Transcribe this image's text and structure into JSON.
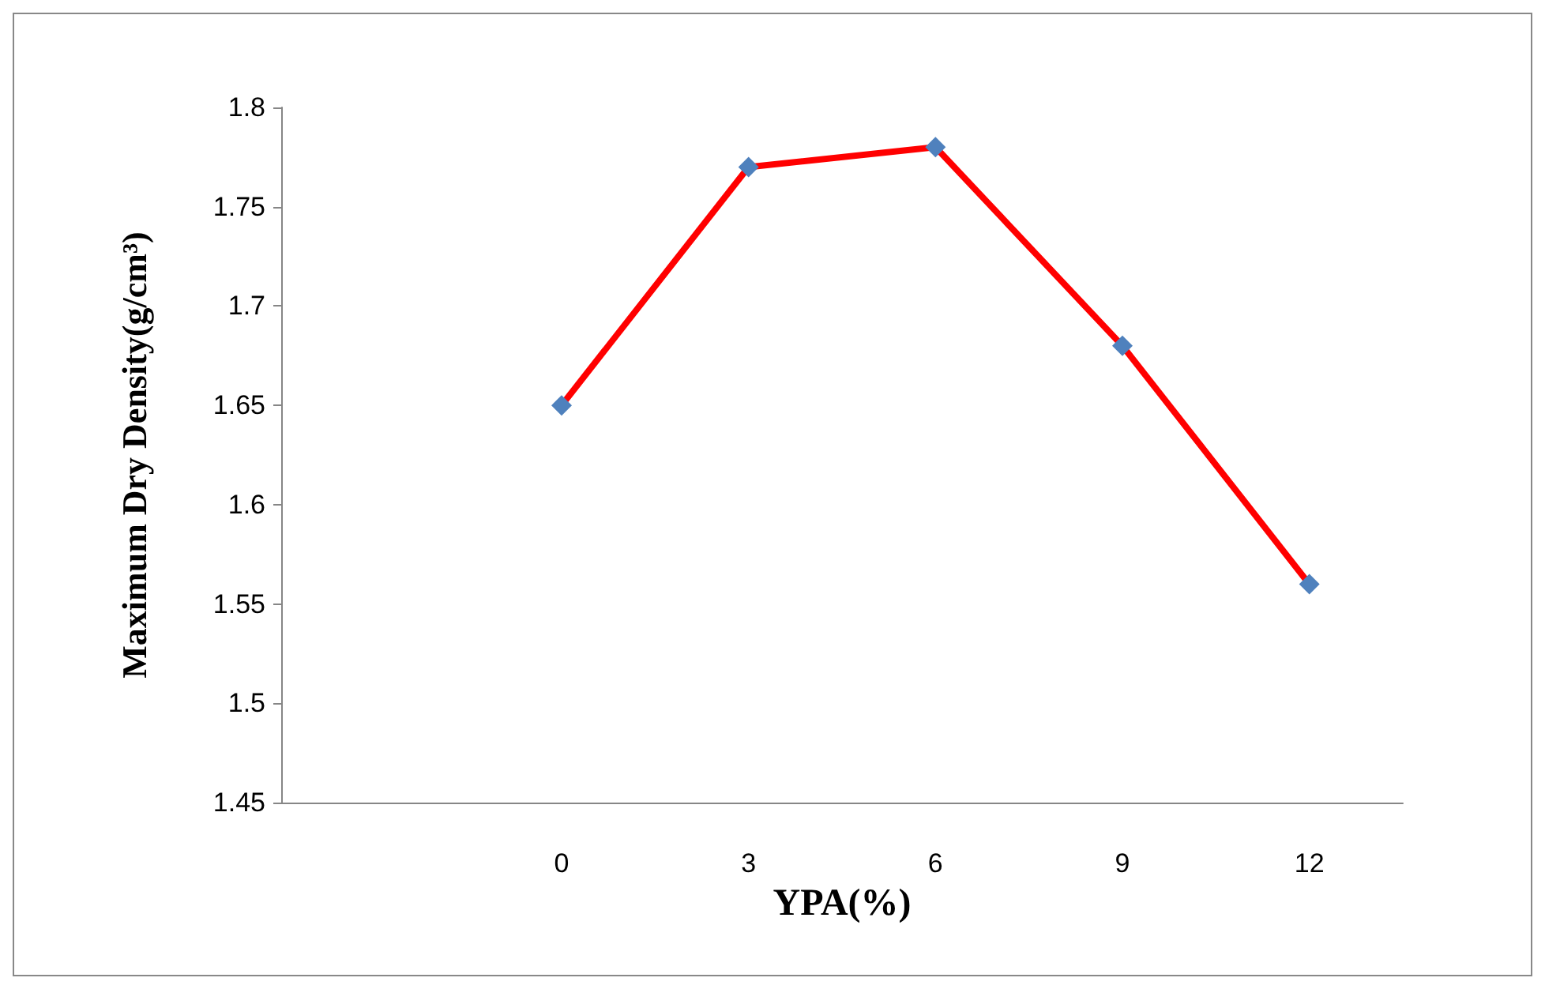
{
  "chart_data": {
    "type": "line",
    "xlabel": "YPA(%)",
    "ylabel": "Maximum Dry Density(g/cm³)",
    "categories": [
      null,
      "0",
      "3",
      "6",
      "9",
      "12"
    ],
    "series": [
      {
        "color": "#ff0000",
        "colors": [
          "#4f81bd",
          "#4f81bd",
          "#4f81bd",
          "#4f81bd",
          "#4f81bd",
          "#4f81bd"
        ],
        "values": [
          null,
          1.65,
          1.77,
          1.78,
          1.68,
          1.56
        ]
      }
    ],
    "ylim": [
      1.45,
      1.8
    ],
    "yticks": [
      1.45,
      1.5,
      1.55,
      1.6,
      1.65,
      1.7,
      1.75,
      1.8
    ],
    "marker": "diamond",
    "line_style": "solid"
  }
}
